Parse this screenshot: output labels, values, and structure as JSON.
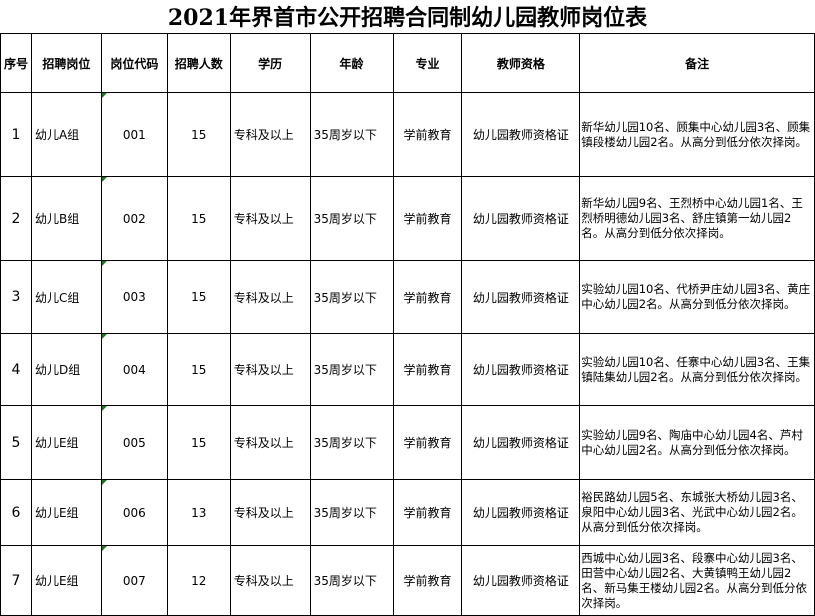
{
  "title": "2021年界首市公开招聘合同制幼儿园教师岗位表",
  "headers": [
    "序号",
    "招聘岗位",
    "岗位代码",
    "招聘人数",
    "学历",
    "年龄",
    "专业",
    "教师资格",
    "备注"
  ],
  "rows": [
    {
      "no": "1",
      "post": "幼儿A组",
      "code": "001",
      "count": "15",
      "edu": "专科及以上",
      "age": "35周岁以下",
      "major": "学前教育",
      "cert": "幼儿园教师资格证",
      "note": "新华幼儿园10名、顾集中心幼儿园3名、顾集镇段楼幼儿园2名。从高分到低分依次择岗。"
    },
    {
      "no": "2",
      "post": "幼儿B组",
      "code": "002",
      "count": "15",
      "edu": "专科及以上",
      "age": "35周岁以下",
      "major": "学前教育",
      "cert": "幼儿园教师资格证",
      "note": "新华幼儿园9名、王烈桥中心幼儿园1名、王烈桥明德幼儿园3名、舒庄镇第一幼儿园2名。从高分到低分依次择岗。"
    },
    {
      "no": "3",
      "post": "幼儿C组",
      "code": "003",
      "count": "15",
      "edu": "专科及以上",
      "age": "35周岁以下",
      "major": "学前教育",
      "cert": "幼儿园教师资格证",
      "note": "实验幼儿园10名、代桥尹庄幼儿园3名、黄庄中心幼儿园2名。从高分到低分依次择岗。"
    },
    {
      "no": "4",
      "post": "幼儿D组",
      "code": "004",
      "count": "15",
      "edu": "专科及以上",
      "age": "35周岁以下",
      "major": "学前教育",
      "cert": "幼儿园教师资格证",
      "note": "实验幼儿园10名、任寨中心幼儿园3名、王集镇陆集幼儿园2名。从高分到低分依次择岗。"
    },
    {
      "no": "5",
      "post": "幼儿E组",
      "code": "005",
      "count": "15",
      "edu": "专科及以上",
      "age": "35周岁以下",
      "major": "学前教育",
      "cert": "幼儿园教师资格证",
      "note": "实验幼儿园9名、陶庙中心幼儿园4名、芦村中心幼儿园2名。从高分到低分依次择岗。"
    },
    {
      "no": "6",
      "post": "幼儿E组",
      "code": "006",
      "count": "13",
      "edu": "专科及以上",
      "age": "35周岁以下",
      "major": "学前教育",
      "cert": "幼儿园教师资格证",
      "note": "裕民路幼儿园5名、东城张大桥幼儿园3名、泉阳中心幼儿园3名、光武中心幼儿园2名。从高分到低分依次择岗。"
    },
    {
      "no": "7",
      "post": "幼儿E组",
      "code": "007",
      "count": "12",
      "edu": "专科及以上",
      "age": "35周岁以下",
      "major": "学前教育",
      "cert": "幼儿园教师资格证",
      "note": "西城中心幼儿园3名、段寨中心幼儿园3名、田营中心幼儿园2名、大黄镇鸭王幼儿园2名、新马集王楼幼儿园2名。从高分到低分依次择岗。"
    }
  ]
}
